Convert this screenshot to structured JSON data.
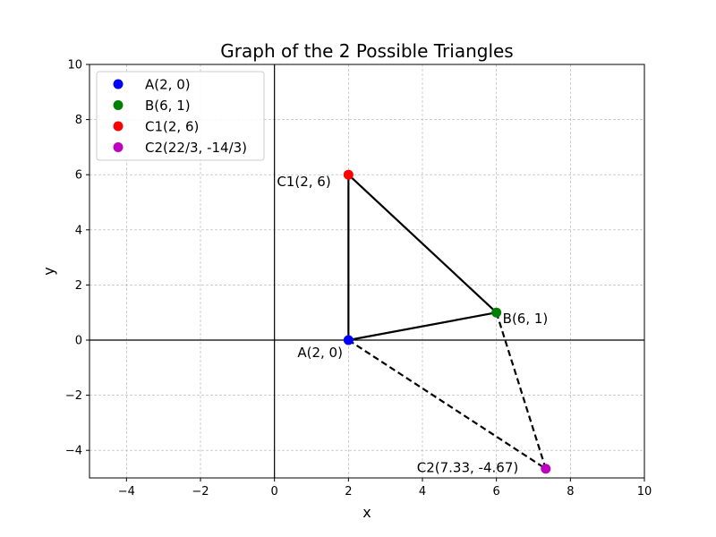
{
  "chart_data": {
    "type": "scatter",
    "title": "Graph of the 2 Possible Triangles",
    "xlabel": "x",
    "ylabel": "y",
    "xlim": [
      -5,
      10
    ],
    "ylim": [
      -5,
      10
    ],
    "xticks": [
      -4,
      -2,
      0,
      2,
      4,
      6,
      8,
      10
    ],
    "yticks": [
      -4,
      -2,
      0,
      2,
      4,
      6,
      8,
      10
    ],
    "x_tick_labels": [
      "−4",
      "−2",
      "0",
      "2",
      "4",
      "6",
      "8",
      "10"
    ],
    "y_tick_labels": [
      "−4",
      "−2",
      "0",
      "2",
      "4",
      "6",
      "8",
      "10"
    ],
    "grid": true,
    "legend_position": "top-left",
    "points": [
      {
        "id": "A",
        "legend": "A(2, 0)",
        "label": "A(2, 0)",
        "x": 2,
        "y": 0,
        "color": "#0000ff"
      },
      {
        "id": "B",
        "legend": "B(6, 1)",
        "label": "B(6, 1)",
        "x": 6,
        "y": 1,
        "color": "#008000"
      },
      {
        "id": "C1",
        "legend": "C1(2, 6)",
        "label": "C1(2, 6)",
        "x": 2,
        "y": 6,
        "color": "#ff0000"
      },
      {
        "id": "C2",
        "legend": "C2(22/3, -14/3)",
        "label": "C2(7.33, -4.67)",
        "x": 7.333,
        "y": -4.667,
        "color": "#bf00bf"
      }
    ],
    "segments": [
      {
        "from": "A",
        "to": "B",
        "style": "solid"
      },
      {
        "from": "B",
        "to": "C1",
        "style": "solid"
      },
      {
        "from": "C1",
        "to": "A",
        "style": "solid"
      },
      {
        "from": "A",
        "to": "C2",
        "style": "dashed"
      },
      {
        "from": "B",
        "to": "C2",
        "style": "dashed"
      }
    ]
  }
}
